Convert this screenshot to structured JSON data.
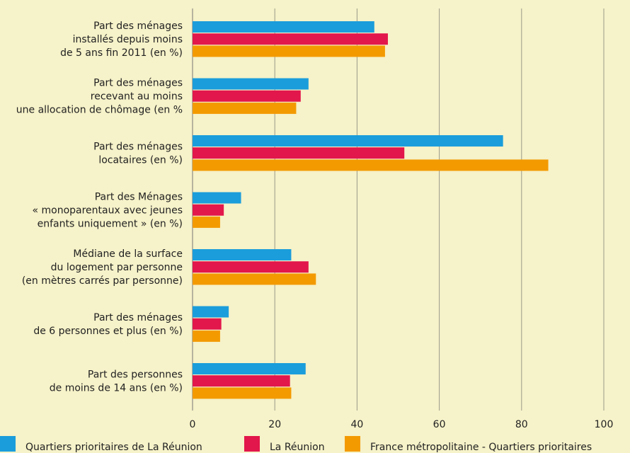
{
  "chart_data": {
    "type": "hbar",
    "categories": [
      [
        "Part des ménages",
        "installés depuis moins",
        "de 5 ans fin 2011 (en %)"
      ],
      [
        "Part des ménages",
        "recevant au moins",
        "une allocation de chômage (en %"
      ],
      [
        "Part des ménages",
        "locataires (en %)"
      ],
      [
        "Part des Ménages",
        "« monoparentaux avec jeunes",
        "enfants uniquement » (en %)"
      ],
      [
        "Médiane de la surface",
        "du logement par personne",
        "(en mètres carrés par personne)"
      ],
      [
        "Part des ménages",
        "de 6 personnes et plus (en %)"
      ],
      [
        "Part des personnes",
        "de moins de 14 ans (en %)"
      ]
    ],
    "series": [
      {
        "name": "Quartiers prioritaires de La Réunion",
        "color": "#1b9ddb",
        "values": [
          44.2,
          28.2,
          75.5,
          11.8,
          24,
          8.8,
          27.5
        ]
      },
      {
        "name": "La Réunion",
        "color": "#e2174b",
        "values": [
          47.5,
          26.3,
          51.5,
          7.6,
          28.2,
          7,
          23.7
        ]
      },
      {
        "name": "France métropolitaine - Quartiers prioritaires",
        "color": "#f39a00",
        "values": [
          46.8,
          25.2,
          86.5,
          6.7,
          30,
          6.7,
          24
        ]
      }
    ],
    "xlim": [
      0,
      100
    ],
    "xticks": [
      0,
      20,
      40,
      60,
      80,
      100
    ],
    "grid": true
  }
}
